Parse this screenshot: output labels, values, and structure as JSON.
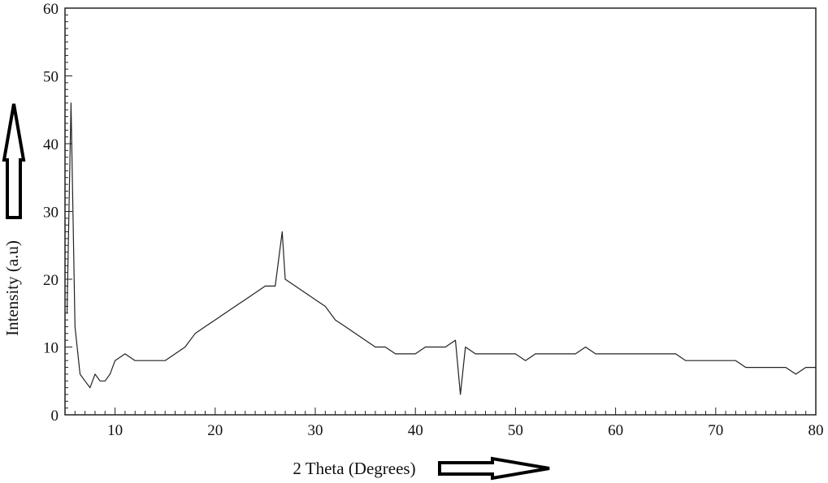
{
  "chart_data": {
    "type": "line",
    "title": "",
    "xlabel": "2 Theta (Degrees)",
    "ylabel": "Intensity (a.u)",
    "xlim": [
      5,
      80
    ],
    "ylim": [
      0,
      60
    ],
    "x_ticks": [
      10,
      20,
      30,
      40,
      50,
      60,
      70,
      80
    ],
    "y_ticks": [
      0,
      10,
      20,
      30,
      40,
      50,
      60
    ],
    "x_tick_labels": [
      "10",
      "20",
      "30",
      "40",
      "50",
      "60",
      "70",
      "80"
    ],
    "y_tick_labels": [
      "0",
      "10",
      "20",
      "30",
      "40",
      "50",
      "60"
    ],
    "grid": false,
    "legend": "none",
    "line_color": "#222222",
    "series": [
      {
        "x": [
          5.2,
          5.6,
          6,
          6.5,
          7,
          7.5,
          8,
          8.5,
          9,
          9.5,
          10,
          11,
          12,
          13,
          14,
          15,
          16,
          17,
          18,
          19,
          20,
          21,
          22,
          23,
          24,
          25,
          26,
          26.7,
          27,
          28,
          29,
          30,
          31,
          32,
          33,
          34,
          35,
          36,
          37,
          38,
          39,
          40,
          41,
          42,
          43,
          44,
          44.5,
          45,
          46,
          47,
          48,
          49,
          50,
          51,
          52,
          53,
          54,
          55,
          56,
          57,
          58,
          59,
          60,
          61,
          62,
          63,
          64,
          65,
          66,
          67,
          68,
          69,
          70,
          71,
          72,
          73,
          74,
          75,
          76,
          77,
          78,
          79,
          80
        ],
        "y": [
          15,
          46,
          13,
          6,
          5,
          4,
          6,
          5,
          5,
          6,
          8,
          9,
          8,
          8,
          8,
          8,
          9,
          10,
          12,
          13,
          14,
          15,
          16,
          17,
          18,
          19,
          19,
          27,
          20,
          19,
          18,
          17,
          16,
          14,
          13,
          12,
          11,
          10,
          10,
          9,
          9,
          9,
          10,
          10,
          10,
          11,
          3,
          10,
          9,
          9,
          9,
          9,
          9,
          8,
          9,
          9,
          9,
          9,
          9,
          10,
          9,
          9,
          9,
          9,
          9,
          9,
          9,
          9,
          9,
          8,
          8,
          8,
          8,
          8,
          8,
          7,
          7,
          7,
          7,
          7,
          6,
          7,
          7
        ]
      }
    ]
  }
}
